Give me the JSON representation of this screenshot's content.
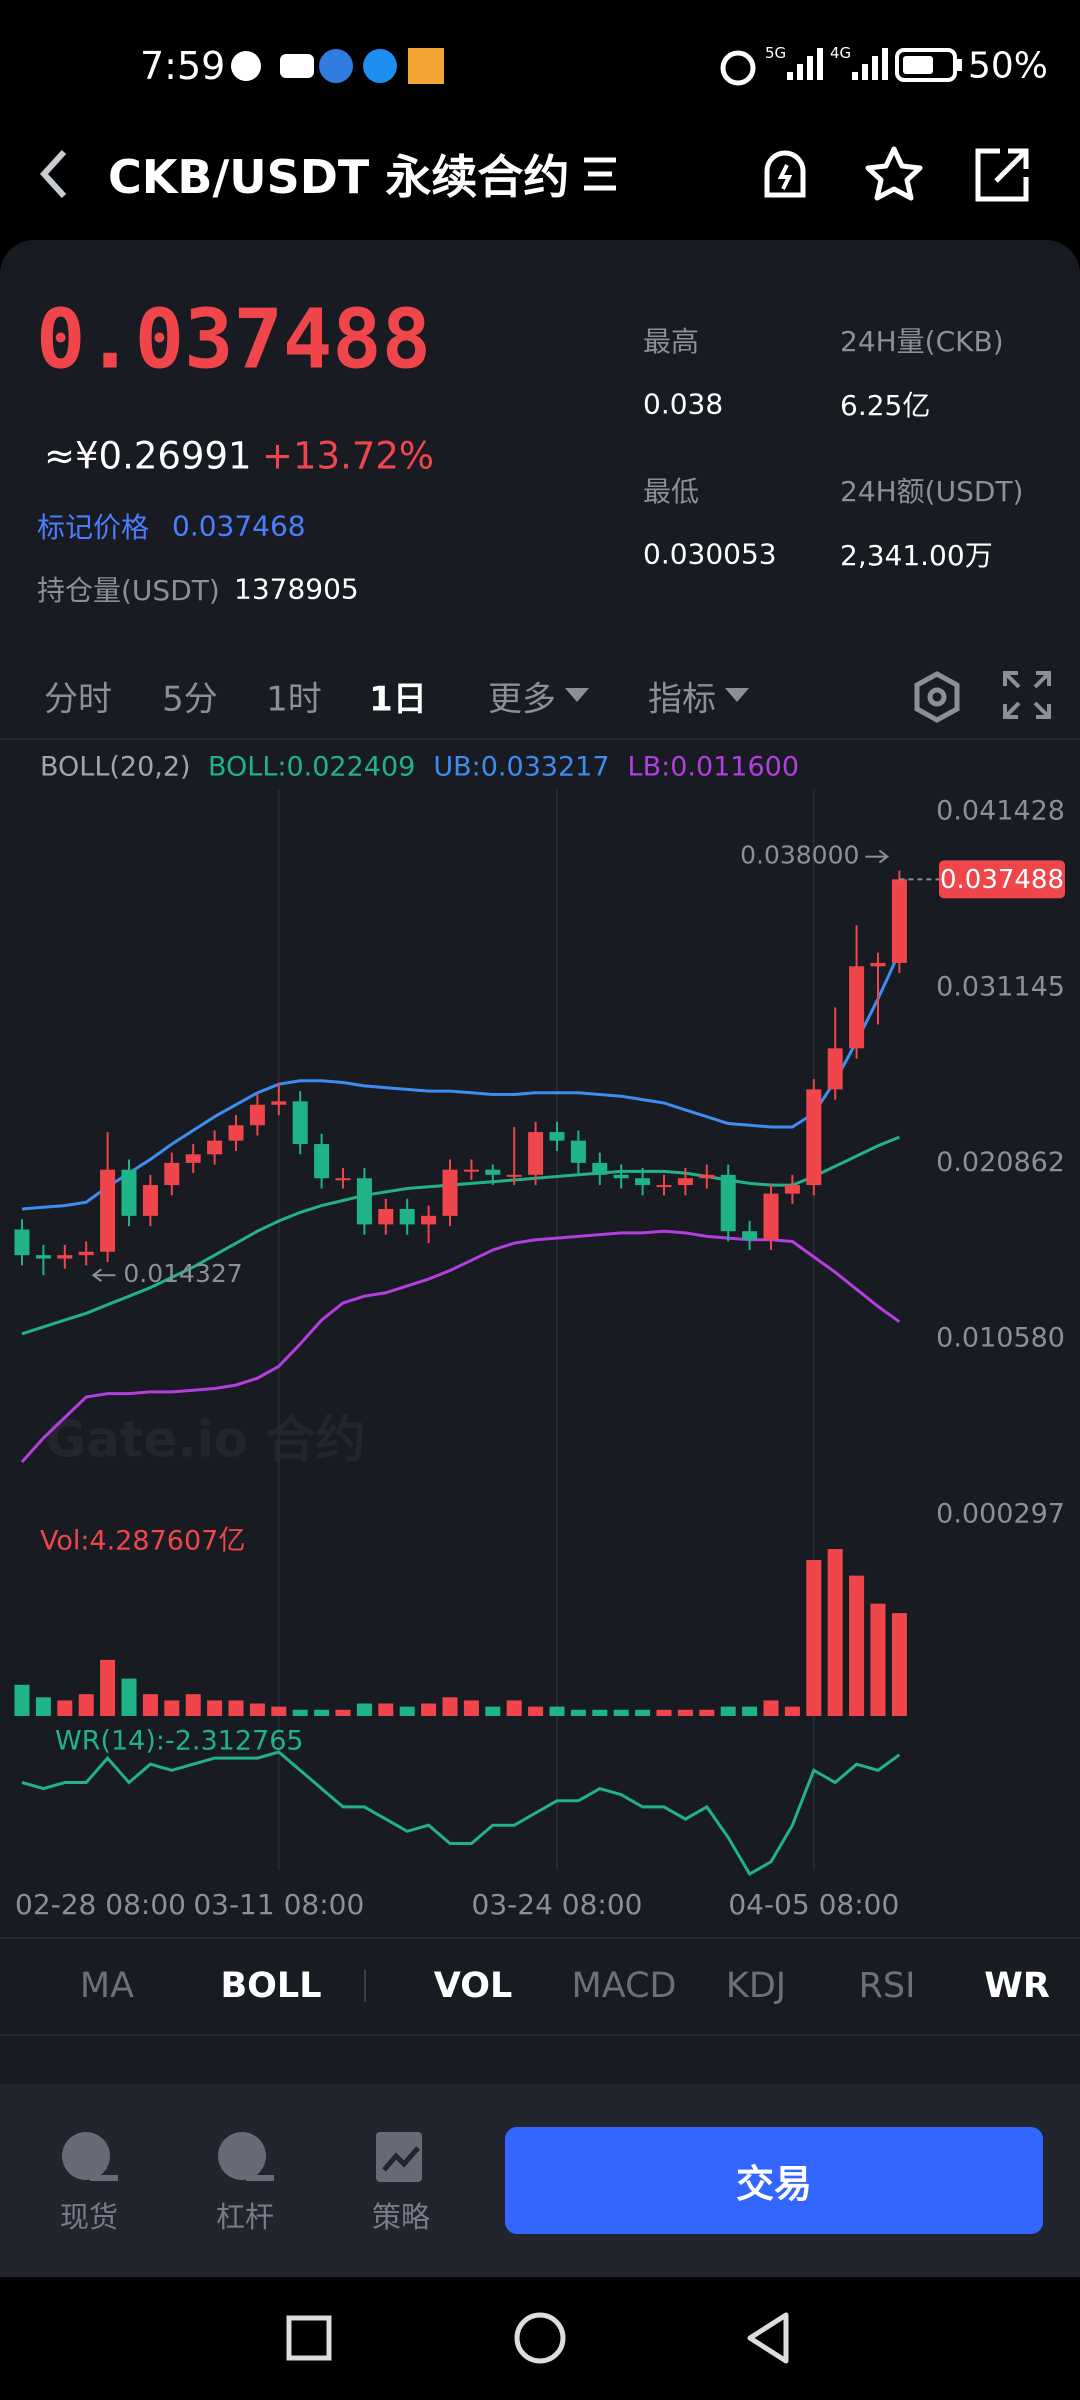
{
  "status_bar": {
    "time": "7:59",
    "net1": "5G",
    "net2": "4G",
    "battery": "50%"
  },
  "header": {
    "title": "CKB/USDT 永续合约"
  },
  "ticker": {
    "price": "0.037488",
    "cny": "≈¥0.26991",
    "change": "+13.72%",
    "mark_label": "标记价格",
    "mark_price": "0.037468",
    "oi_label": "持仓量(USDT)",
    "oi": "1378905",
    "stats": [
      {
        "label": "最高",
        "value": "0.038"
      },
      {
        "label": "24H量(CKB)",
        "value": "6.25亿"
      },
      {
        "label": "最低",
        "value": "0.030053"
      },
      {
        "label": "24H额(USDT)",
        "value": "2,341.00万"
      }
    ]
  },
  "periods": [
    "分时",
    "5分",
    "1时",
    "1日",
    "更多",
    "指标"
  ],
  "kline": {
    "type": "candlestick",
    "up_color": "#f0464b",
    "down_color": "#1fb487",
    "ylim": [
      0.000297,
      0.041428
    ],
    "yticks": [
      0.041428,
      0.031145,
      0.020862,
      {
        "value": 0.01058,
        "label": "0.010580"
      },
      0.000297
    ],
    "categories": [
      "02-28 08:00",
      null,
      null,
      null,
      null,
      null,
      null,
      null,
      null,
      null,
      null,
      null,
      "03-11 08:00",
      null,
      null,
      null,
      null,
      null,
      null,
      null,
      null,
      null,
      null,
      null,
      null,
      "03-24 08:00",
      null,
      null,
      null,
      null,
      null,
      null,
      null,
      null,
      null,
      null,
      null,
      "04-05 08:00",
      null,
      null,
      null,
      null
    ],
    "open": [
      0.017,
      0.0155,
      0.0153,
      0.0155,
      0.0157,
      0.0205,
      0.0178,
      0.0196,
      0.0209,
      0.0214,
      0.0222,
      0.0231,
      0.0243,
      0.0245,
      0.022,
      0.02,
      0.02,
      0.0173,
      0.0182,
      0.0173,
      0.0178,
      0.0205,
      0.0205,
      0.0202,
      0.0202,
      0.0227,
      0.0222,
      0.0209,
      0.0202,
      0.02,
      0.0196,
      0.0196,
      0.02,
      0.0202,
      0.0169,
      0.0164,
      0.0191,
      0.0196,
      0.0252,
      0.0276,
      0.0324,
      0.0326
    ],
    "high": [
      0.0176,
      0.0161,
      0.0161,
      0.0163,
      0.0227,
      0.0211,
      0.0202,
      0.0215,
      0.022,
      0.0228,
      0.0237,
      0.0249,
      0.0256,
      0.0251,
      0.0226,
      0.0206,
      0.0206,
      0.0188,
      0.0188,
      0.0184,
      0.0211,
      0.0211,
      0.0208,
      0.023,
      0.0233,
      0.0233,
      0.0228,
      0.0215,
      0.0208,
      0.0206,
      0.0202,
      0.0206,
      0.0208,
      0.0208,
      0.0175,
      0.0197,
      0.0202,
      0.0258,
      0.03,
      0.0348,
      0.0332,
      0.038
    ],
    "low": [
      0.0149,
      0.014327,
      0.0147,
      0.0149,
      0.0151,
      0.0172,
      0.0172,
      0.019,
      0.0203,
      0.0208,
      0.0216,
      0.0225,
      0.0237,
      0.0214,
      0.0194,
      0.0194,
      0.0167,
      0.0167,
      0.0167,
      0.0162,
      0.0172,
      0.0199,
      0.0196,
      0.0196,
      0.0196,
      0.0216,
      0.0203,
      0.0196,
      0.0194,
      0.019,
      0.019,
      0.019,
      0.0194,
      0.0163,
      0.0158,
      0.0158,
      0.0185,
      0.019,
      0.0246,
      0.027,
      0.029,
      0.032
    ],
    "close": [
      0.0155,
      0.0153,
      0.0155,
      0.0157,
      0.0205,
      0.0178,
      0.0196,
      0.0209,
      0.0214,
      0.0222,
      0.0231,
      0.0243,
      0.0245,
      0.022,
      0.02,
      0.02,
      0.0173,
      0.0182,
      0.0173,
      0.0178,
      0.0205,
      0.0205,
      0.0202,
      0.0202,
      0.0227,
      0.0222,
      0.0209,
      0.0202,
      0.02,
      0.0196,
      0.0196,
      0.02,
      0.0202,
      0.0169,
      0.0164,
      0.0191,
      0.0196,
      0.0252,
      0.0276,
      0.0324,
      0.0326,
      0.037488
    ],
    "last_price_label": "0.037488",
    "max_label": "0.038000",
    "min_label": "0.014327",
    "watermark": "Gate.io 合约",
    "boll": {
      "title": "BOLL(20,2)",
      "series": [
        {
          "name": "BOLL:0.022409",
          "color": "#21b386",
          "values": [
            0.0109,
            0.0113,
            0.0117,
            0.0121,
            0.0126,
            0.0131,
            0.0136,
            0.0142,
            0.0148,
            0.0155,
            0.0162,
            0.0169,
            0.0175,
            0.018,
            0.0184,
            0.0187,
            0.019,
            0.0192,
            0.0194,
            0.0195,
            0.0196,
            0.0197,
            0.0198,
            0.0199,
            0.02,
            0.0201,
            0.0202,
            0.0203,
            0.0204,
            0.0204,
            0.0204,
            0.0203,
            0.0201,
            0.0199,
            0.0197,
            0.0196,
            0.0196,
            0.0201,
            0.0207,
            0.0213,
            0.0219,
            0.022409
          ]
        },
        {
          "name": "UB:0.033217",
          "color": "#3d8df0",
          "values": [
            0.0182,
            0.0183,
            0.0184,
            0.0186,
            0.0195,
            0.0203,
            0.0211,
            0.022,
            0.0228,
            0.0236,
            0.0243,
            0.025,
            0.0255,
            0.0257,
            0.0257,
            0.0256,
            0.0254,
            0.0253,
            0.0252,
            0.0251,
            0.0251,
            0.025,
            0.0249,
            0.0249,
            0.025,
            0.025,
            0.025,
            0.0249,
            0.0248,
            0.0246,
            0.0244,
            0.024,
            0.0236,
            0.0232,
            0.0231,
            0.023,
            0.023,
            0.0238,
            0.0257,
            0.028,
            0.0305,
            0.033217
          ]
        },
        {
          "name": "LB:0.011600",
          "color": "#b43ee0",
          "values": [
            0.0034,
            0.0048,
            0.006,
            0.0072,
            0.0074,
            0.0074,
            0.0075,
            0.0075,
            0.0076,
            0.0077,
            0.0079,
            0.0083,
            0.009,
            0.0103,
            0.0117,
            0.0127,
            0.0131,
            0.0133,
            0.0137,
            0.0141,
            0.0146,
            0.0152,
            0.0158,
            0.0162,
            0.0164,
            0.0165,
            0.0166,
            0.0167,
            0.0168,
            0.0168,
            0.0169,
            0.0168,
            0.0166,
            0.0165,
            0.0164,
            0.0164,
            0.0163,
            0.0154,
            0.0145,
            0.0135,
            0.0125,
            0.0116
          ]
        }
      ]
    },
    "volume": {
      "label": "Vol:4.287607亿",
      "ylim": [
        0,
        7
      ],
      "values": [
        1.3,
        0.78,
        0.65,
        0.91,
        2.34,
        1.56,
        0.91,
        0.65,
        0.91,
        0.65,
        0.65,
        0.52,
        0.39,
        0.26,
        0.26,
        0.26,
        0.52,
        0.52,
        0.39,
        0.52,
        0.78,
        0.65,
        0.39,
        0.65,
        0.39,
        0.39,
        0.26,
        0.26,
        0.26,
        0.26,
        0.26,
        0.26,
        0.26,
        0.39,
        0.39,
        0.65,
        0.39,
        6.5,
        6.96,
        5.85,
        4.68,
        4.287607
      ]
    },
    "wr": {
      "label": "WR(14):-2.312765",
      "color": "#21b386",
      "ylim": [
        -100,
        0
      ],
      "values": [
        -25,
        -30,
        -25,
        -25,
        -5,
        -25,
        -10,
        -15,
        -10,
        -5,
        -5,
        -5,
        0,
        -15,
        -30,
        -45,
        -45,
        -55,
        -65,
        -60,
        -75,
        -75,
        -60,
        -60,
        -50,
        -40,
        -40,
        -30,
        -35,
        -45,
        -45,
        -55,
        -45,
        -70,
        -100,
        -90,
        -60,
        -15,
        -25,
        -10,
        -15,
        -2.312765
      ]
    }
  },
  "indicator_tabs": [
    "MA",
    "BOLL",
    "VOL",
    "MACD",
    "KDJ",
    "RSI",
    "WR"
  ],
  "nav": [
    "现货",
    "杠杆",
    "策略"
  ],
  "trade_button": "交易"
}
